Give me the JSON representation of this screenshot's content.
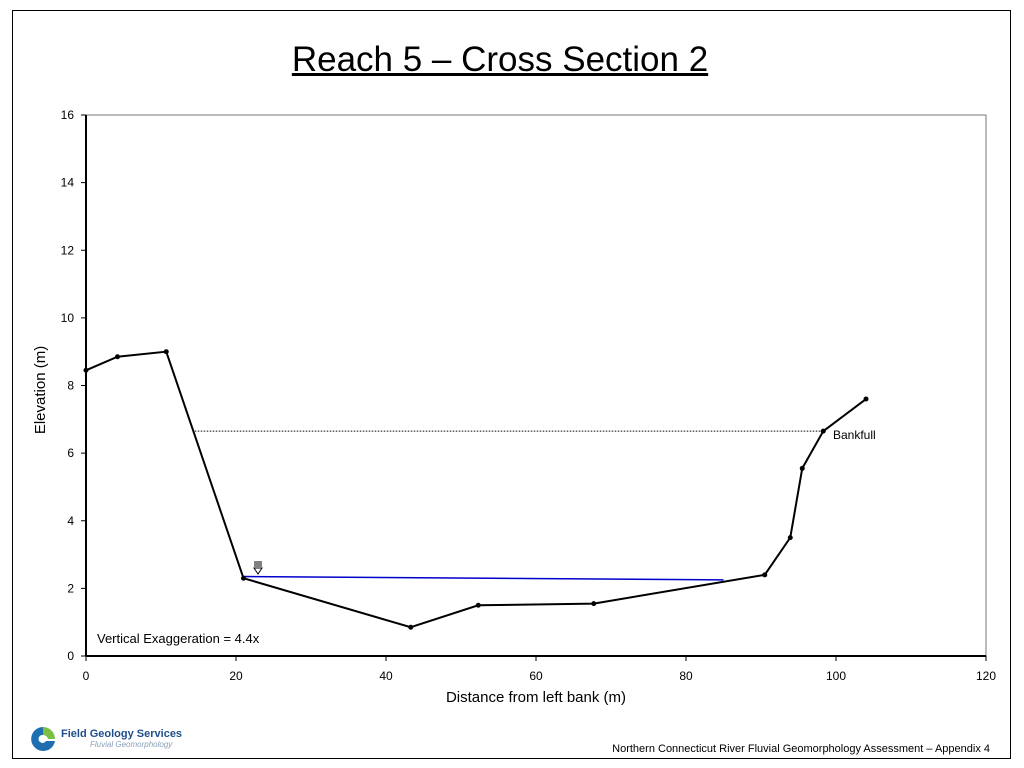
{
  "slide": {
    "title": "Reach 5 – Cross Section 2",
    "footer": "Northern Connecticut River Fluvial Geomorphology Assessment – Appendix 4",
    "logo_name": "Field Geology Services",
    "logo_tagline": "Fluvial Geomorphology",
    "logo_icon": "field-geology-services-logo"
  },
  "chart_data": {
    "type": "line",
    "title": "",
    "xlabel": "Distance from left bank (m)",
    "ylabel": "Elevation (m)",
    "xlim": [
      0,
      120
    ],
    "ylim": [
      0,
      16
    ],
    "xticks": [
      0,
      20,
      40,
      60,
      80,
      100,
      120
    ],
    "yticks": [
      0,
      2,
      4,
      6,
      8,
      10,
      12,
      14,
      16
    ],
    "grid": false,
    "series": [
      {
        "role": "ground-profile",
        "color": "#000000",
        "x": [
          0,
          4.2,
          10.7,
          21.0,
          43.3,
          52.3,
          67.7,
          90.5,
          93.9,
          95.5,
          98.3,
          104.0
        ],
        "y": [
          8.45,
          8.85,
          9.0,
          2.3,
          0.85,
          1.5,
          1.55,
          2.4,
          3.5,
          5.55,
          6.65,
          7.6
        ]
      },
      {
        "role": "water-surface",
        "color": "#0000cc",
        "x": [
          21.0,
          85.0
        ],
        "y": [
          2.35,
          2.25
        ]
      },
      {
        "role": "bankfull",
        "color": "#000000",
        "style": "dotted",
        "x": [
          14.5,
          98.3
        ],
        "y": [
          6.65,
          6.65
        ]
      }
    ],
    "annotations": {
      "bankfull_label": "Bankfull",
      "exaggeration_note": "Vertical Exaggeration = 4.4x",
      "water_surface_symbol": "water-surface-symbol-icon"
    }
  }
}
